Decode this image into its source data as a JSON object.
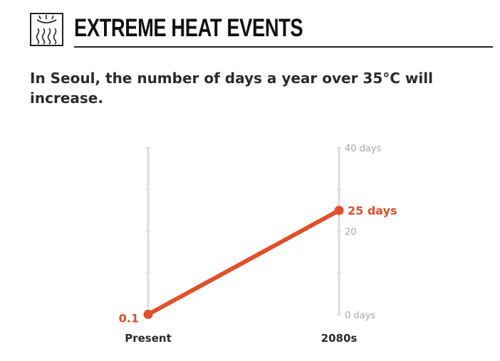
{
  "header": {
    "icon": "heat-waves-icon",
    "title": "EXTREME HEAT EVENTS"
  },
  "subtitle": "In Seoul, the number of days a year over 35°C will increase.",
  "colors": {
    "accent": "#e2502a",
    "axis": "#dddddd",
    "tick_label": "#aaaaaa",
    "text": "#2b2b2b"
  },
  "chart_data": {
    "type": "line",
    "title": "In Seoul, the number of days a year over 35°C will increase.",
    "categories": [
      "Present",
      "2080s"
    ],
    "series": [
      {
        "name": "Days a year over 35°C",
        "values": [
          0.1,
          25
        ]
      }
    ],
    "data_labels": [
      "0.1",
      "25 days"
    ],
    "ylim": [
      0,
      40
    ],
    "yticks": [
      {
        "value": 0,
        "label": "0 days"
      },
      {
        "value": 20,
        "label": "20"
      },
      {
        "value": 40,
        "label": "40 days"
      }
    ],
    "minor_tick_step": 10,
    "xlabel": "",
    "ylabel": "",
    "grid": false,
    "legend": "none"
  }
}
